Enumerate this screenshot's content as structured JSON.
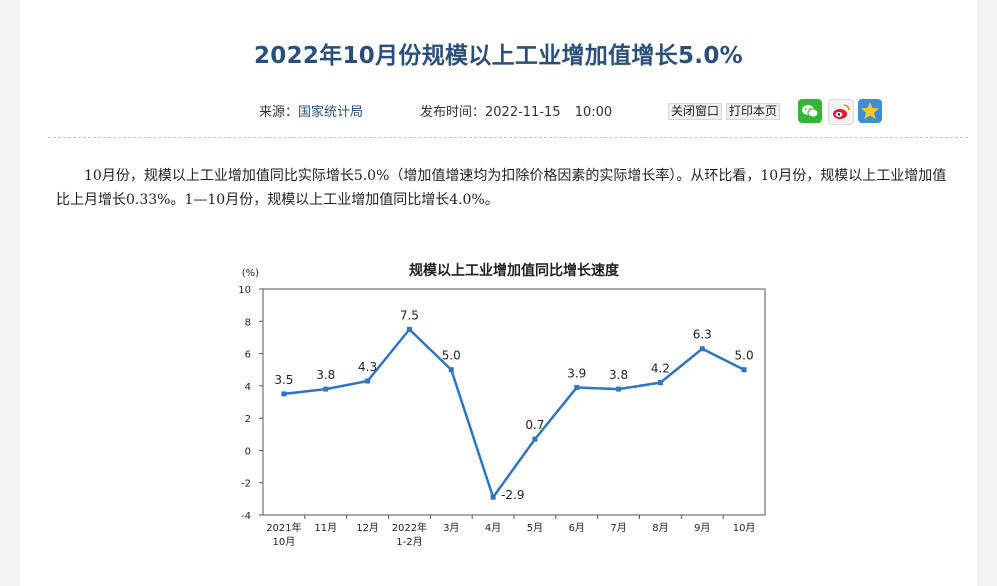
{
  "article": {
    "title": "2022年10月份规模以上工业增加值增长5.0%",
    "source_label": "来源：",
    "source_name": "国家统计局",
    "publish_label": "发布时间：",
    "publish_date": "2022-11-15",
    "publish_time": "10:00",
    "close_button": "关闭窗口",
    "print_button": "打印本页",
    "share_icons": [
      "wechat-icon",
      "weibo-icon",
      "qzone-icon"
    ],
    "paragraph": "10月份，规模以上工业增加值同比实际增长5.0%（增加值增速均为扣除价格因素的实际增长率）。从环比看，10月份，规模以上工业增加值比上月增长0.33%。1—10月份，规模以上工业增加值同比增长4.0%。"
  },
  "chart_data": {
    "type": "line",
    "title": "规模以上工业增加值同比增长速度",
    "ylabel": "(%)",
    "ylim": [
      -4,
      10
    ],
    "yticks": [
      -4,
      -2,
      0,
      2,
      4,
      6,
      8,
      10
    ],
    "categories": [
      [
        "2021年",
        "10月"
      ],
      [
        "11月"
      ],
      [
        "12月"
      ],
      [
        "2022年",
        "1-2月"
      ],
      [
        "3月"
      ],
      [
        "4月"
      ],
      [
        "5月"
      ],
      [
        "6月"
      ],
      [
        "7月"
      ],
      [
        "8月"
      ],
      [
        "9月"
      ],
      [
        "10月"
      ]
    ],
    "values": [
      3.5,
      3.8,
      4.3,
      7.5,
      5.0,
      -2.9,
      0.7,
      3.9,
      3.8,
      4.2,
      6.3,
      5.0
    ],
    "labels": [
      "3.5",
      "3.8",
      "4.3",
      "7.5",
      "5.0",
      "-2.9",
      "0.7",
      "3.9",
      "3.8",
      "4.2",
      "6.3",
      "5.0"
    ],
    "grid": false,
    "line_color": "#2e75c4"
  }
}
